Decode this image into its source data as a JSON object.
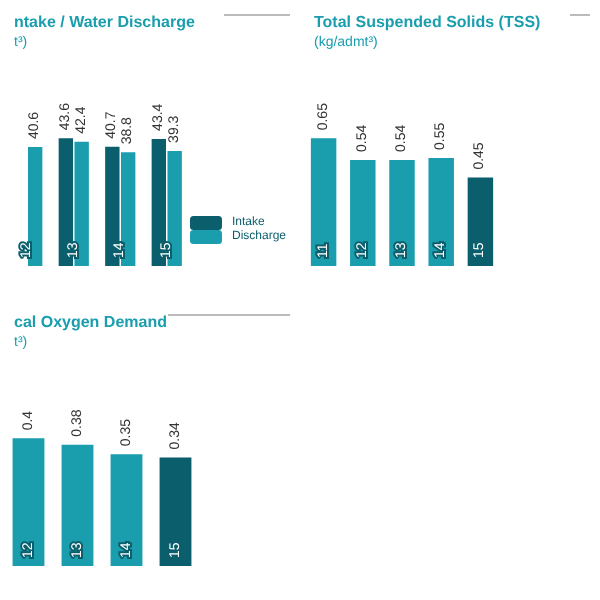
{
  "chart_data": [
    {
      "type": "bar",
      "title": "ntake / Water Discharge",
      "subtitle": "t³)",
      "categories": [
        "12",
        "13",
        "14",
        "15"
      ],
      "data_labels": true,
      "legend": "bottom right",
      "series": [
        {
          "name": "Intake",
          "color": "#0b5f6c",
          "values": [
            null,
            43.6,
            40.7,
            43.4
          ]
        },
        {
          "name": "Discharge",
          "color": "#1a9eae",
          "values": [
            40.6,
            42.4,
            38.8,
            39.3
          ]
        }
      ]
    },
    {
      "type": "bar",
      "title": "Total Suspended Solids (TSS)",
      "subtitle": "(kg/admt³)",
      "categories": [
        "11",
        "12",
        "13",
        "14",
        "15"
      ],
      "data_labels": true,
      "values": [
        0.65,
        0.54,
        0.54,
        0.55,
        0.45
      ],
      "colors": [
        "#1a9eae",
        "#1a9eae",
        "#1a9eae",
        "#1a9eae",
        "#0b5f6c"
      ]
    },
    {
      "type": "bar",
      "title": "cal Oxygen Demand",
      "subtitle": "t³)",
      "categories": [
        "12",
        "13",
        "14",
        "15"
      ],
      "data_labels": true,
      "values": [
        0.4,
        0.38,
        0.35,
        0.34
      ],
      "colors": [
        "#1a9eae",
        "#1a9eae",
        "#1a9eae",
        "#0b5f6c"
      ]
    }
  ]
}
